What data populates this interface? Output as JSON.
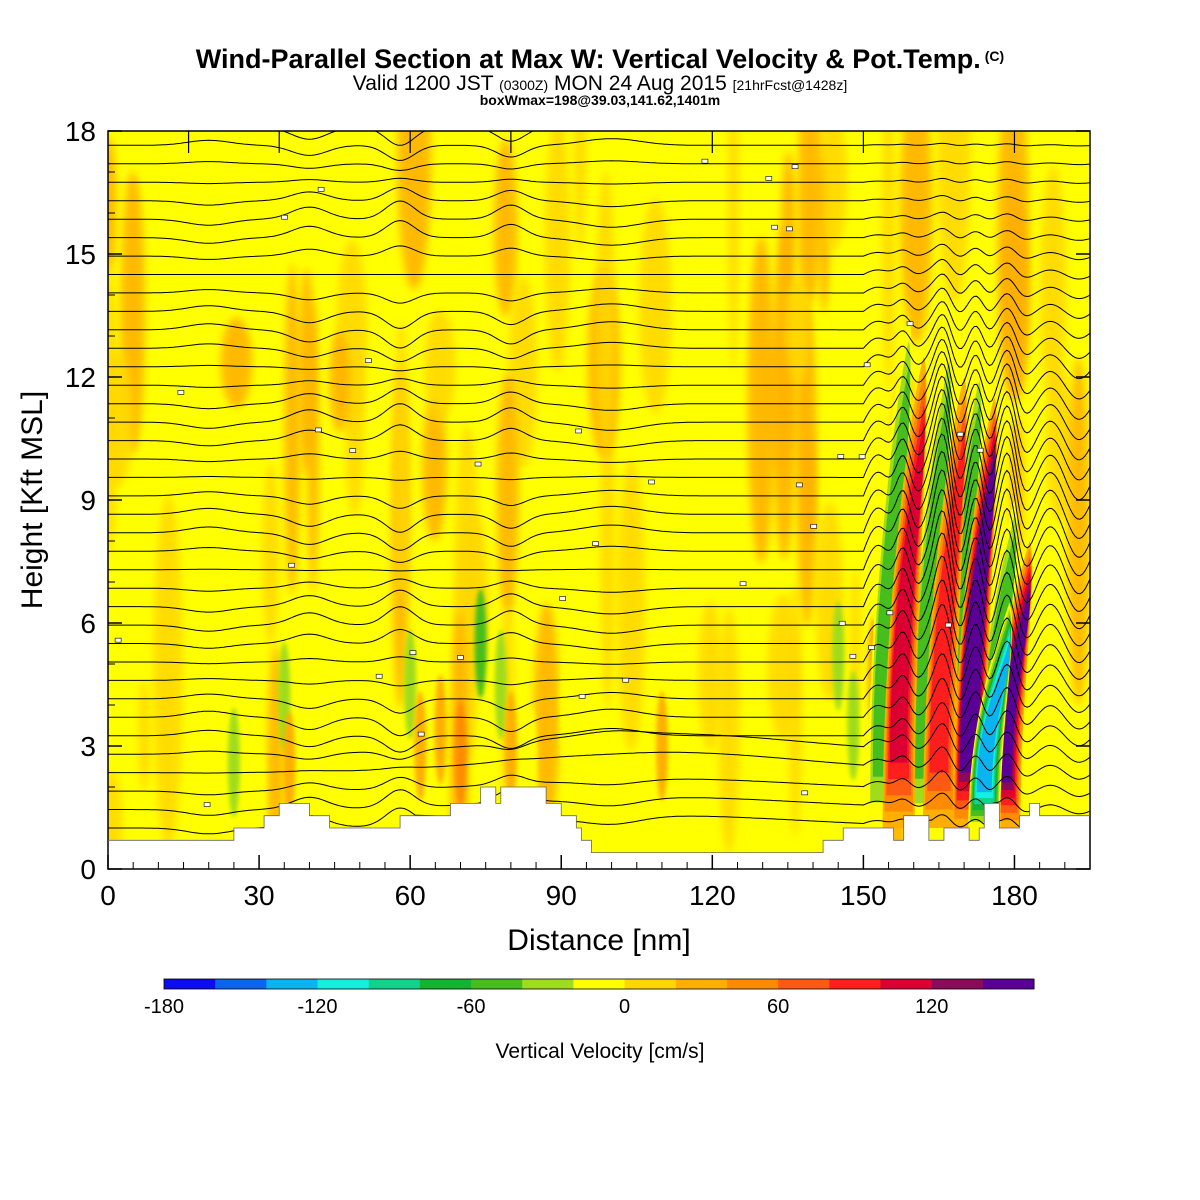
{
  "header": {
    "title": "Wind-Parallel Section at Max W: Vertical Velocity & Pot.Temp.",
    "copyright": "(C)",
    "valid_prefix": "Valid 1200 JST",
    "valid_utc": "(0300Z)",
    "valid_date": "MON 24 Aug 2015",
    "forecast": "[21hrFcst@1428z]",
    "box_info": "boxWmax=198@39.03,141.62,1401m"
  },
  "chart_data": {
    "type": "heatmap",
    "xlabel": "Distance [nm]",
    "ylabel": "Height [Kft MSL]",
    "xlim": [
      0,
      195
    ],
    "ylim": [
      0,
      18
    ],
    "x_ticks": [
      "0",
      "30",
      "60",
      "90",
      "120",
      "150",
      "180"
    ],
    "y_ticks": [
      "0",
      "3",
      "6",
      "9",
      "12",
      "15",
      "18"
    ],
    "colorbar": {
      "label": "Vertical Velocity [cm/s]",
      "min": -180,
      "max": 160,
      "step": 20,
      "ticks": [
        "-180",
        "-120",
        "-60",
        "0",
        "60",
        "120"
      ],
      "colors": [
        "#0c0cf0",
        "#0a64ee",
        "#0ab4f0",
        "#14f0dc",
        "#12d28c",
        "#12b432",
        "#46be1e",
        "#a0dc1e",
        "#ffff00",
        "#ffd700",
        "#ffaf00",
        "#ff8c00",
        "#ff5a14",
        "#ff1e1e",
        "#dc0032",
        "#8c0a5a",
        "#5a0096"
      ]
    },
    "updraft_cores": [
      {
        "x": 158,
        "z_bottom": 1.0,
        "z_top": 12.5,
        "w": 100
      },
      {
        "x": 166,
        "z_bottom": 1.0,
        "z_top": 12.0,
        "w": 90
      },
      {
        "x": 172,
        "z_bottom": 1.0,
        "z_top": 11.5,
        "w": 198
      },
      {
        "x": 179,
        "z_bottom": 1.0,
        "z_top": 8.0,
        "w": 140
      }
    ],
    "downdraft_cores": [
      {
        "x": 175,
        "z_bottom": 1.0,
        "z_top": 6.5,
        "w": -140
      }
    ],
    "terrain_kft": [
      [
        0,
        0.7
      ],
      [
        24,
        0.7
      ],
      [
        25,
        1.0
      ],
      [
        30,
        1.0
      ],
      [
        31,
        1.3
      ],
      [
        33,
        1.3
      ],
      [
        34,
        1.6
      ],
      [
        39,
        1.6
      ],
      [
        40,
        1.3
      ],
      [
        43,
        1.3
      ],
      [
        44,
        1.0
      ],
      [
        51,
        1.0
      ],
      [
        52,
        1.0
      ],
      [
        57,
        1.0
      ],
      [
        58,
        1.3
      ],
      [
        67,
        1.3
      ],
      [
        68,
        1.6
      ],
      [
        73,
        1.6
      ],
      [
        74,
        2.0
      ],
      [
        76,
        2.0
      ],
      [
        77,
        1.6
      ],
      [
        78,
        2.0
      ],
      [
        86,
        2.0
      ],
      [
        87,
        1.6
      ],
      [
        89,
        1.6
      ],
      [
        90,
        1.3
      ],
      [
        92,
        1.3
      ],
      [
        93,
        1.0
      ],
      [
        94,
        0.7
      ],
      [
        96,
        0.4
      ],
      [
        100,
        0.4
      ],
      [
        141,
        0.4
      ],
      [
        142,
        0.7
      ],
      [
        146,
        1.0
      ],
      [
        154,
        1.0
      ],
      [
        156,
        0.7
      ],
      [
        158,
        1.3
      ],
      [
        162,
        1.3
      ],
      [
        163,
        0.7
      ],
      [
        166,
        1.0
      ],
      [
        170,
        1.0
      ],
      [
        171,
        0.7
      ],
      [
        173,
        1.0
      ],
      [
        174,
        1.6
      ],
      [
        176,
        1.6
      ],
      [
        177,
        1.0
      ],
      [
        180,
        1.0
      ],
      [
        181,
        1.3
      ],
      [
        183,
        1.6
      ],
      [
        185,
        1.3
      ],
      [
        195,
        1.3
      ]
    ]
  }
}
